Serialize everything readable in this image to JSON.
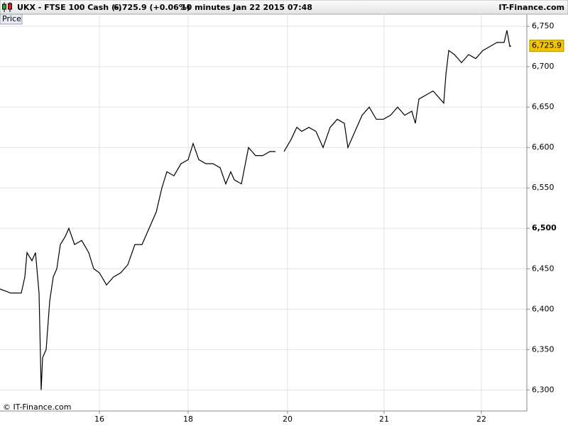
{
  "chart_data": {
    "type": "line",
    "symbol": "UKX - FTSE 100 Cash (-)",
    "quote": "6,725.9 (+0.06%)",
    "interval": "10 minutes  Jan 22 2015 07:48",
    "source": "IT-Finance.com",
    "panel_label": "Price",
    "copyright": "© IT-Finance.com",
    "x": [
      0,
      15,
      30,
      35,
      38,
      45,
      50,
      55,
      58,
      60,
      65,
      70,
      75,
      80,
      85,
      92,
      97,
      105,
      115,
      125,
      132,
      140,
      150,
      160,
      170,
      180,
      190,
      200,
      210,
      220,
      228,
      235,
      245,
      255,
      265,
      272,
      280,
      290,
      300,
      310,
      318,
      325,
      330,
      340,
      350,
      360,
      370,
      380,
      388,
      394,
      400,
      410,
      418,
      425,
      435,
      445,
      455,
      465,
      475,
      485,
      490,
      500,
      510,
      520,
      530,
      540,
      550,
      560,
      570,
      580,
      585,
      590,
      600,
      610,
      620,
      625,
      628,
      632,
      640,
      650,
      660,
      670,
      680,
      690,
      700,
      710,
      714,
      718,
      720
    ],
    "series": [
      {
        "name": "Price",
        "color": "#000000",
        "values": [
          6425,
          6420,
          6420,
          6440,
          6470,
          6460,
          6470,
          6420,
          6300,
          6340,
          6350,
          6410,
          6440,
          6450,
          6480,
          6490,
          6500,
          6480,
          6485,
          6470,
          6450,
          6445,
          6430,
          6440,
          6445,
          6455,
          6480,
          6480,
          6500,
          6520,
          6550,
          6570,
          6565,
          6580,
          6585,
          6605,
          6585,
          6580,
          6580,
          6575,
          6555,
          6570,
          6560,
          6555,
          6600,
          6590,
          6590,
          6595,
          6595,
          null,
          6595,
          6610,
          6625,
          6620,
          6625,
          6620,
          6600,
          6625,
          6635,
          6630,
          6600,
          6620,
          6640,
          6650,
          6635,
          6635,
          6640,
          6650,
          6640,
          6645,
          6630,
          6660,
          6665,
          6670,
          6660,
          6655,
          6690,
          6720,
          6715,
          6705,
          6715,
          6710,
          6720,
          6725,
          6730,
          6730,
          6745,
          6725,
          6725.9
        ]
      }
    ],
    "last_label": "6,725.9",
    "xlim": [
      0,
      742
    ],
    "xticks": [
      {
        "value": 140,
        "label": "16"
      },
      {
        "value": 265,
        "label": "18"
      },
      {
        "value": 405,
        "label": "20"
      },
      {
        "value": 541,
        "label": "21"
      },
      {
        "value": 678,
        "label": "22"
      }
    ],
    "ylim": [
      6274,
      6765
    ],
    "yticks": [
      {
        "value": 6300,
        "label": "6,300"
      },
      {
        "value": 6350,
        "label": "6,350"
      },
      {
        "value": 6400,
        "label": "6,400"
      },
      {
        "value": 6450,
        "label": "6,450"
      },
      {
        "value": 6500,
        "label": "6,500"
      },
      {
        "value": 6550,
        "label": "6,550"
      },
      {
        "value": 6600,
        "label": "6,600"
      },
      {
        "value": 6650,
        "label": "6,650"
      },
      {
        "value": 6700,
        "label": "6,700"
      },
      {
        "value": 6750,
        "label": "6,750"
      }
    ],
    "grid": true
  }
}
